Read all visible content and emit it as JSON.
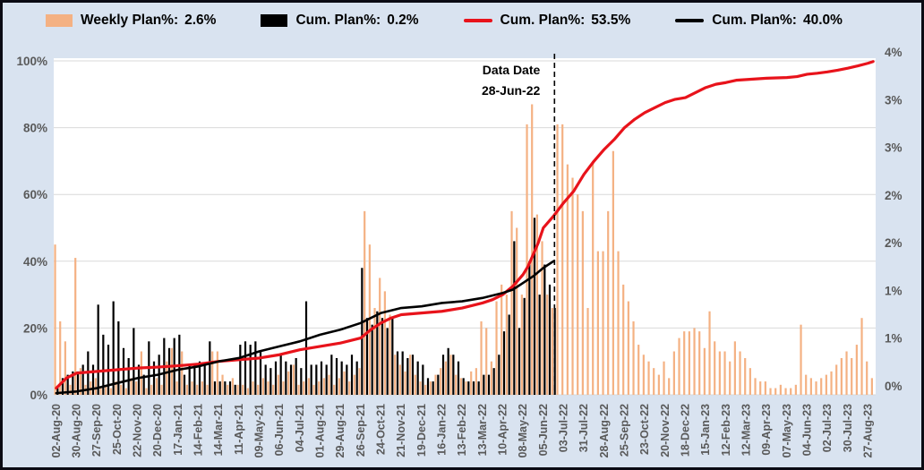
{
  "legend": {
    "items": [
      {
        "label": "Weekly Plan%:",
        "value": "2.6%",
        "swatch": "bar",
        "color": "#F4B183"
      },
      {
        "label": "Cum. Plan%:",
        "value": "0.2%",
        "swatch": "bar",
        "color": "#000000"
      },
      {
        "label": "Cum. Plan%:",
        "value": "53.5%",
        "swatch": "line",
        "color": "#E8131B"
      },
      {
        "label": "Cum. Plan%:",
        "value": "40.0%",
        "swatch": "line",
        "color": "#000000"
      }
    ]
  },
  "annotation": {
    "line1": "Data Date",
    "line2": "28-Jun-22",
    "week": 98.2
  },
  "colors": {
    "background": "#d9e3f0",
    "plot": "#ffffff",
    "grid": "#d9d9d9",
    "axis_text": "#595959",
    "frame_border": "#0b0b14",
    "dashed_line": "#000000"
  },
  "chart_data": {
    "type": "combo",
    "title": "",
    "x_axis": {
      "unit": "weeks, one bar per week, labels every 4 weeks",
      "total_weeks": 162,
      "labels": [
        "02-Aug-20",
        "30-Aug-20",
        "27-Sep-20",
        "25-Oct-20",
        "22-Nov-20",
        "20-Dec-20",
        "17-Jan-21",
        "14-Feb-21",
        "14-Mar-21",
        "11-Apr-21",
        "09-May-21",
        "06-Jun-21",
        "04-Jul-21",
        "01-Aug-21",
        "29-Aug-21",
        "26-Sep-21",
        "24-Oct-21",
        "21-Nov-21",
        "19-Dec-21",
        "16-Jan-22",
        "13-Feb-22",
        "13-Mar-22",
        "10-Apr-22",
        "08-May-22",
        "05-Jun-22",
        "03-Jul-22",
        "31-Jul-22",
        "28-Aug-22",
        "25-Sep-22",
        "23-Oct-22",
        "20-Nov-22",
        "18-Dec-22",
        "15-Jan-23",
        "12-Feb-23",
        "12-Mar-23",
        "09-Apr-23",
        "07-May-23",
        "04-Jun-23",
        "02-Jul-23",
        "30-Jul-23",
        "27-Aug-23"
      ]
    },
    "y_left": {
      "range": [
        0,
        100
      ],
      "ticks": [
        {
          "v": 0,
          "t": "0%"
        },
        {
          "v": 20,
          "t": "20%"
        },
        {
          "v": 40,
          "t": "40%"
        },
        {
          "v": 60,
          "t": "60%"
        },
        {
          "v": 80,
          "t": "80%"
        },
        {
          "v": 100,
          "t": "100%"
        }
      ]
    },
    "y_right": {
      "range_labels_top_to_bottom": [
        "4%",
        "3%",
        "3%",
        "2%",
        "2%",
        "1%",
        "1%",
        "0%"
      ]
    },
    "gridline_values": [
      0,
      20,
      40,
      60,
      80,
      100
    ],
    "legend_position": "top",
    "series": [
      {
        "name": "Weekly Plan%",
        "legend_value": "2.6%",
        "type": "bar",
        "color": "#F4B183",
        "note": "weekly bars, values estimated in left-axis percent",
        "values": [
          45,
          22,
          16,
          3,
          41,
          8,
          3,
          4,
          5,
          2,
          3,
          2,
          4,
          3,
          2,
          5,
          4,
          13,
          2,
          3,
          5,
          3,
          10,
          14,
          4,
          13,
          3,
          4,
          3,
          4,
          3,
          13,
          13,
          6,
          3,
          5,
          3,
          3,
          2,
          4,
          3,
          5,
          4,
          3,
          6,
          4,
          7,
          9,
          3,
          4,
          5,
          3,
          4,
          5,
          6,
          3,
          5,
          7,
          4,
          6,
          8,
          55,
          45,
          26,
          35,
          31,
          24,
          12,
          9,
          7,
          12,
          6,
          4,
          3,
          4,
          6,
          8,
          10,
          12,
          6,
          5,
          4,
          7,
          8,
          22,
          20,
          10,
          28,
          33,
          30,
          55,
          50,
          30,
          81,
          87,
          54,
          46,
          30,
          26,
          81,
          81,
          69,
          65,
          60,
          55,
          26,
          70,
          43,
          43,
          55,
          73,
          43,
          33,
          28,
          22,
          15,
          12,
          10,
          8,
          6,
          10,
          5,
          13,
          17,
          19,
          19,
          20,
          19,
          14,
          25,
          16,
          13,
          13,
          10,
          16,
          13,
          11,
          8,
          5,
          4,
          4,
          2,
          2,
          3,
          2,
          2,
          3,
          21,
          6,
          5,
          4,
          5,
          6,
          7,
          9,
          11,
          13,
          11,
          15,
          23,
          10,
          5
        ]
      },
      {
        "name": "Cum. Plan% (black weekly bars)",
        "legend_value": "0.2%",
        "type": "bar",
        "color": "#000000",
        "note": "black bars stop at the data date (week 98)",
        "values": [
          2,
          5,
          6,
          7,
          7,
          9,
          13,
          9,
          27,
          18,
          15,
          28,
          22,
          14,
          11,
          20,
          9,
          6,
          16,
          10,
          12,
          17,
          14,
          17,
          18,
          6,
          9,
          9,
          10,
          9,
          16,
          4,
          4,
          4,
          4,
          3,
          15,
          16,
          15,
          16,
          13,
          9,
          8,
          10,
          12,
          10,
          9,
          11,
          8,
          28,
          9,
          9,
          10,
          9,
          12,
          11,
          10,
          9,
          12,
          10,
          38,
          23,
          21,
          25,
          23,
          20,
          23,
          13,
          13,
          11,
          12,
          10,
          9,
          5,
          4,
          6,
          12,
          14,
          12,
          10,
          5,
          4,
          4,
          4,
          6,
          6,
          8,
          12,
          19,
          24,
          46,
          20,
          29,
          40,
          53,
          30,
          39,
          33,
          26
        ]
      },
      {
        "name": "Cum. Plan% (red S-curve, planned)",
        "legend_value": "53.5%",
        "type": "line",
        "color": "#E8131B",
        "points": [
          [
            0,
            2
          ],
          [
            2,
            5
          ],
          [
            4,
            6.5
          ],
          [
            8,
            7
          ],
          [
            12,
            7.5
          ],
          [
            16,
            8
          ],
          [
            20,
            8.3
          ],
          [
            24,
            8.7
          ],
          [
            28,
            9.2
          ],
          [
            32,
            10
          ],
          [
            36,
            10.5
          ],
          [
            40,
            11
          ],
          [
            44,
            12
          ],
          [
            48,
            13.5
          ],
          [
            52,
            14.5
          ],
          [
            56,
            15.5
          ],
          [
            60,
            17
          ],
          [
            62,
            19.5
          ],
          [
            64,
            21.5
          ],
          [
            66,
            23
          ],
          [
            68,
            24
          ],
          [
            72,
            24.5
          ],
          [
            76,
            25
          ],
          [
            80,
            26
          ],
          [
            84,
            27.5
          ],
          [
            86,
            28.5
          ],
          [
            88,
            30
          ],
          [
            90,
            32.5
          ],
          [
            92,
            36
          ],
          [
            93,
            38.5
          ],
          [
            94,
            42
          ],
          [
            95,
            45.5
          ],
          [
            96,
            50
          ],
          [
            98,
            53.5
          ],
          [
            100,
            57.5
          ],
          [
            102,
            61
          ],
          [
            104,
            66
          ],
          [
            106,
            70
          ],
          [
            108,
            73.5
          ],
          [
            110,
            76.5
          ],
          [
            112,
            80
          ],
          [
            114,
            82.5
          ],
          [
            116,
            84.5
          ],
          [
            118,
            86
          ],
          [
            120,
            87.5
          ],
          [
            122,
            88.5
          ],
          [
            124,
            89
          ],
          [
            126,
            90.5
          ],
          [
            128,
            92
          ],
          [
            130,
            93
          ],
          [
            132,
            93.5
          ],
          [
            134,
            94.2
          ],
          [
            136,
            94.4
          ],
          [
            138,
            94.6
          ],
          [
            140,
            94.8
          ],
          [
            142,
            94.9
          ],
          [
            144,
            95
          ],
          [
            146,
            95.3
          ],
          [
            148,
            96
          ],
          [
            150,
            96.3
          ],
          [
            152,
            96.7
          ],
          [
            154,
            97.2
          ],
          [
            156,
            97.8
          ],
          [
            158,
            98.5
          ],
          [
            160,
            99.3
          ],
          [
            161,
            99.8
          ]
        ]
      },
      {
        "name": "Cum. Plan% (black line, actual to data date)",
        "legend_value": "40.0%",
        "type": "line",
        "color": "#000000",
        "points": [
          [
            0,
            0.5
          ],
          [
            4,
            1
          ],
          [
            8,
            2
          ],
          [
            12,
            3.5
          ],
          [
            16,
            5
          ],
          [
            20,
            6
          ],
          [
            24,
            7.5
          ],
          [
            28,
            8.5
          ],
          [
            32,
            10
          ],
          [
            36,
            11
          ],
          [
            40,
            13
          ],
          [
            44,
            14.5
          ],
          [
            48,
            16
          ],
          [
            52,
            18
          ],
          [
            56,
            19.5
          ],
          [
            60,
            21.5
          ],
          [
            62,
            23
          ],
          [
            64,
            24.5
          ],
          [
            68,
            26
          ],
          [
            72,
            26.5
          ],
          [
            76,
            27.5
          ],
          [
            80,
            28
          ],
          [
            84,
            29
          ],
          [
            88,
            30.5
          ],
          [
            90,
            31.5
          ],
          [
            92,
            33.5
          ],
          [
            94,
            35.5
          ],
          [
            96,
            38
          ],
          [
            98,
            40
          ]
        ]
      }
    ]
  }
}
